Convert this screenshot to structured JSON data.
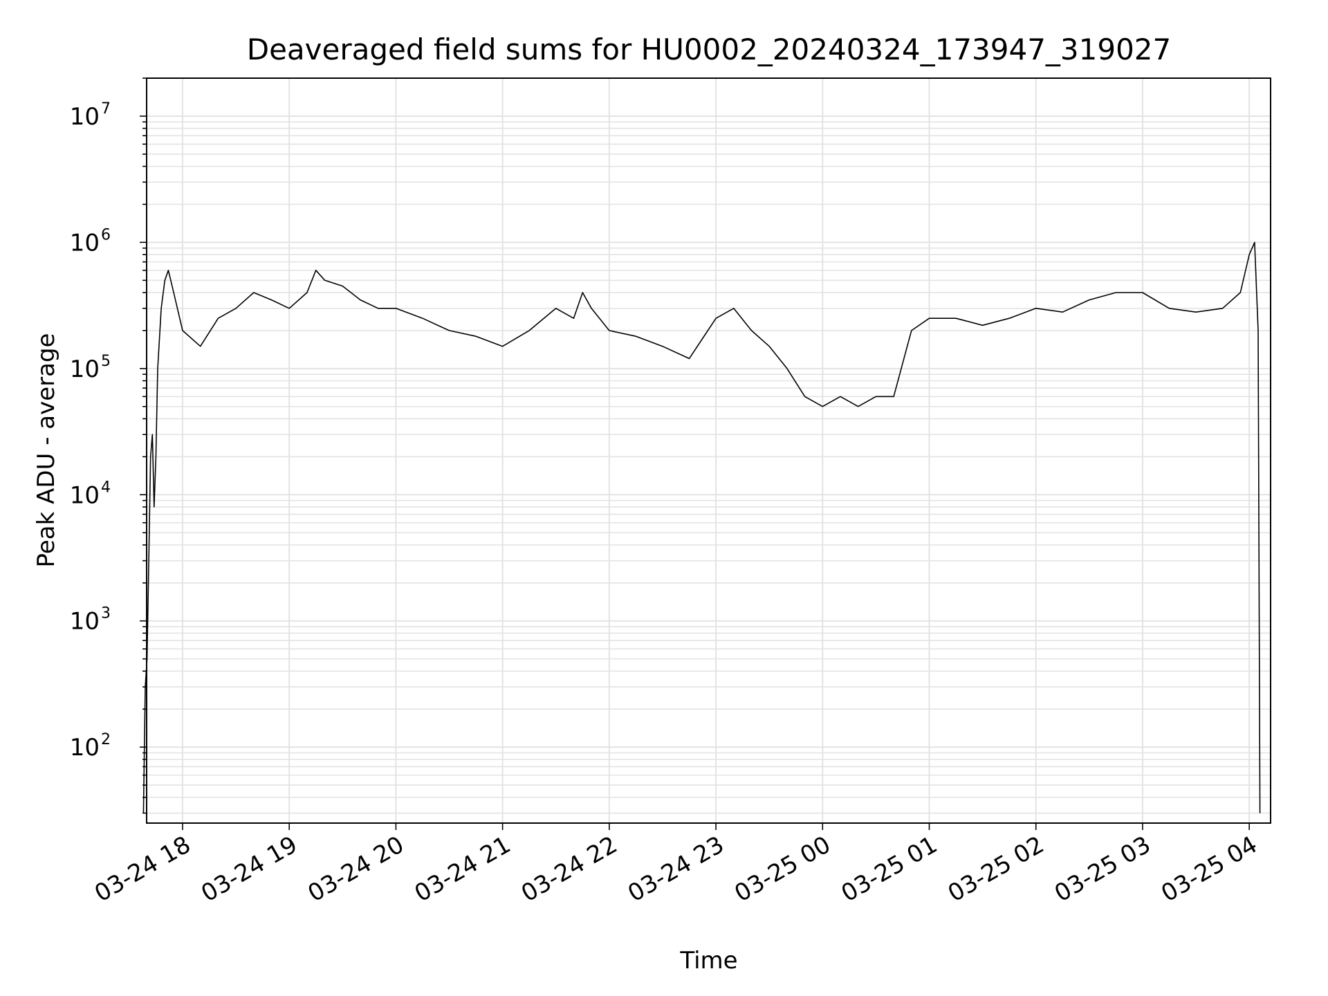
{
  "chart_data": {
    "type": "line",
    "title": "Deaveraged field sums for HU0002_20240324_173947_319027",
    "xlabel": "Time",
    "ylabel": "Peak ADU - average",
    "y_scale": "log",
    "ylim": [
      25,
      20000000
    ],
    "x_range": [
      "2024-03-24 17:39:47",
      "2024-03-25 04:12:00"
    ],
    "x_ticks": [
      "03-24 18",
      "03-24 19",
      "03-24 20",
      "03-24 21",
      "03-24 22",
      "03-24 23",
      "03-25 00",
      "03-25 01",
      "03-25 02",
      "03-25 03",
      "03-25 04"
    ],
    "y_ticks": [
      {
        "base": "10",
        "exp": "2",
        "value": 100
      },
      {
        "base": "10",
        "exp": "3",
        "value": 1000
      },
      {
        "base": "10",
        "exp": "4",
        "value": 10000
      },
      {
        "base": "10",
        "exp": "5",
        "value": 100000
      },
      {
        "base": "10",
        "exp": "6",
        "value": 1000000
      },
      {
        "base": "10",
        "exp": "7",
        "value": 10000000
      }
    ],
    "grid": true,
    "line_color": "#000000",
    "series": [
      {
        "x": [
          "2024-03-24 17:38",
          "2024-03-24 17:39",
          "2024-03-24 17:40",
          "2024-03-24 17:41",
          "2024-03-24 17:42",
          "2024-03-24 17:43",
          "2024-03-24 17:44",
          "2024-03-24 17:45",
          "2024-03-24 17:46",
          "2024-03-24 17:48",
          "2024-03-24 17:50",
          "2024-03-24 17:52",
          "2024-03-24 17:55",
          "2024-03-24 18:00",
          "2024-03-24 18:10",
          "2024-03-24 18:20",
          "2024-03-24 18:30",
          "2024-03-24 18:40",
          "2024-03-24 18:50",
          "2024-03-24 19:00",
          "2024-03-24 19:10",
          "2024-03-24 19:15",
          "2024-03-24 19:20",
          "2024-03-24 19:30",
          "2024-03-24 19:40",
          "2024-03-24 19:50",
          "2024-03-24 20:00",
          "2024-03-24 20:15",
          "2024-03-24 20:30",
          "2024-03-24 20:45",
          "2024-03-24 21:00",
          "2024-03-24 21:15",
          "2024-03-24 21:30",
          "2024-03-24 21:40",
          "2024-03-24 21:45",
          "2024-03-24 21:50",
          "2024-03-24 22:00",
          "2024-03-24 22:15",
          "2024-03-24 22:30",
          "2024-03-24 22:45",
          "2024-03-24 23:00",
          "2024-03-24 23:10",
          "2024-03-24 23:20",
          "2024-03-24 23:30",
          "2024-03-24 23:40",
          "2024-03-24 23:50",
          "2024-03-25 00:00",
          "2024-03-25 00:10",
          "2024-03-25 00:20",
          "2024-03-25 00:30",
          "2024-03-25 00:40",
          "2024-03-25 00:50",
          "2024-03-25 01:00",
          "2024-03-25 01:15",
          "2024-03-25 01:30",
          "2024-03-25 01:45",
          "2024-03-25 02:00",
          "2024-03-25 02:15",
          "2024-03-25 02:30",
          "2024-03-25 02:45",
          "2024-03-25 03:00",
          "2024-03-25 03:15",
          "2024-03-25 03:30",
          "2024-03-25 03:45",
          "2024-03-25 03:55",
          "2024-03-25 04:00",
          "2024-03-25 04:03",
          "2024-03-25 04:05",
          "2024-03-25 04:06"
        ],
        "y": [
          30,
          300,
          500,
          3000,
          20000,
          30000,
          8000,
          20000,
          100000,
          300000,
          500000,
          600000,
          400000,
          200000,
          150000,
          250000,
          300000,
          400000,
          350000,
          300000,
          400000,
          600000,
          500000,
          450000,
          350000,
          300000,
          300000,
          250000,
          200000,
          180000,
          150000,
          200000,
          300000,
          250000,
          400000,
          300000,
          200000,
          180000,
          150000,
          120000,
          250000,
          300000,
          200000,
          150000,
          100000,
          60000,
          50000,
          60000,
          50000,
          60000,
          60000,
          200000,
          250000,
          250000,
          220000,
          250000,
          300000,
          280000,
          350000,
          400000,
          400000,
          300000,
          280000,
          300000,
          400000,
          800000,
          1000000,
          200000,
          30
        ]
      }
    ]
  }
}
